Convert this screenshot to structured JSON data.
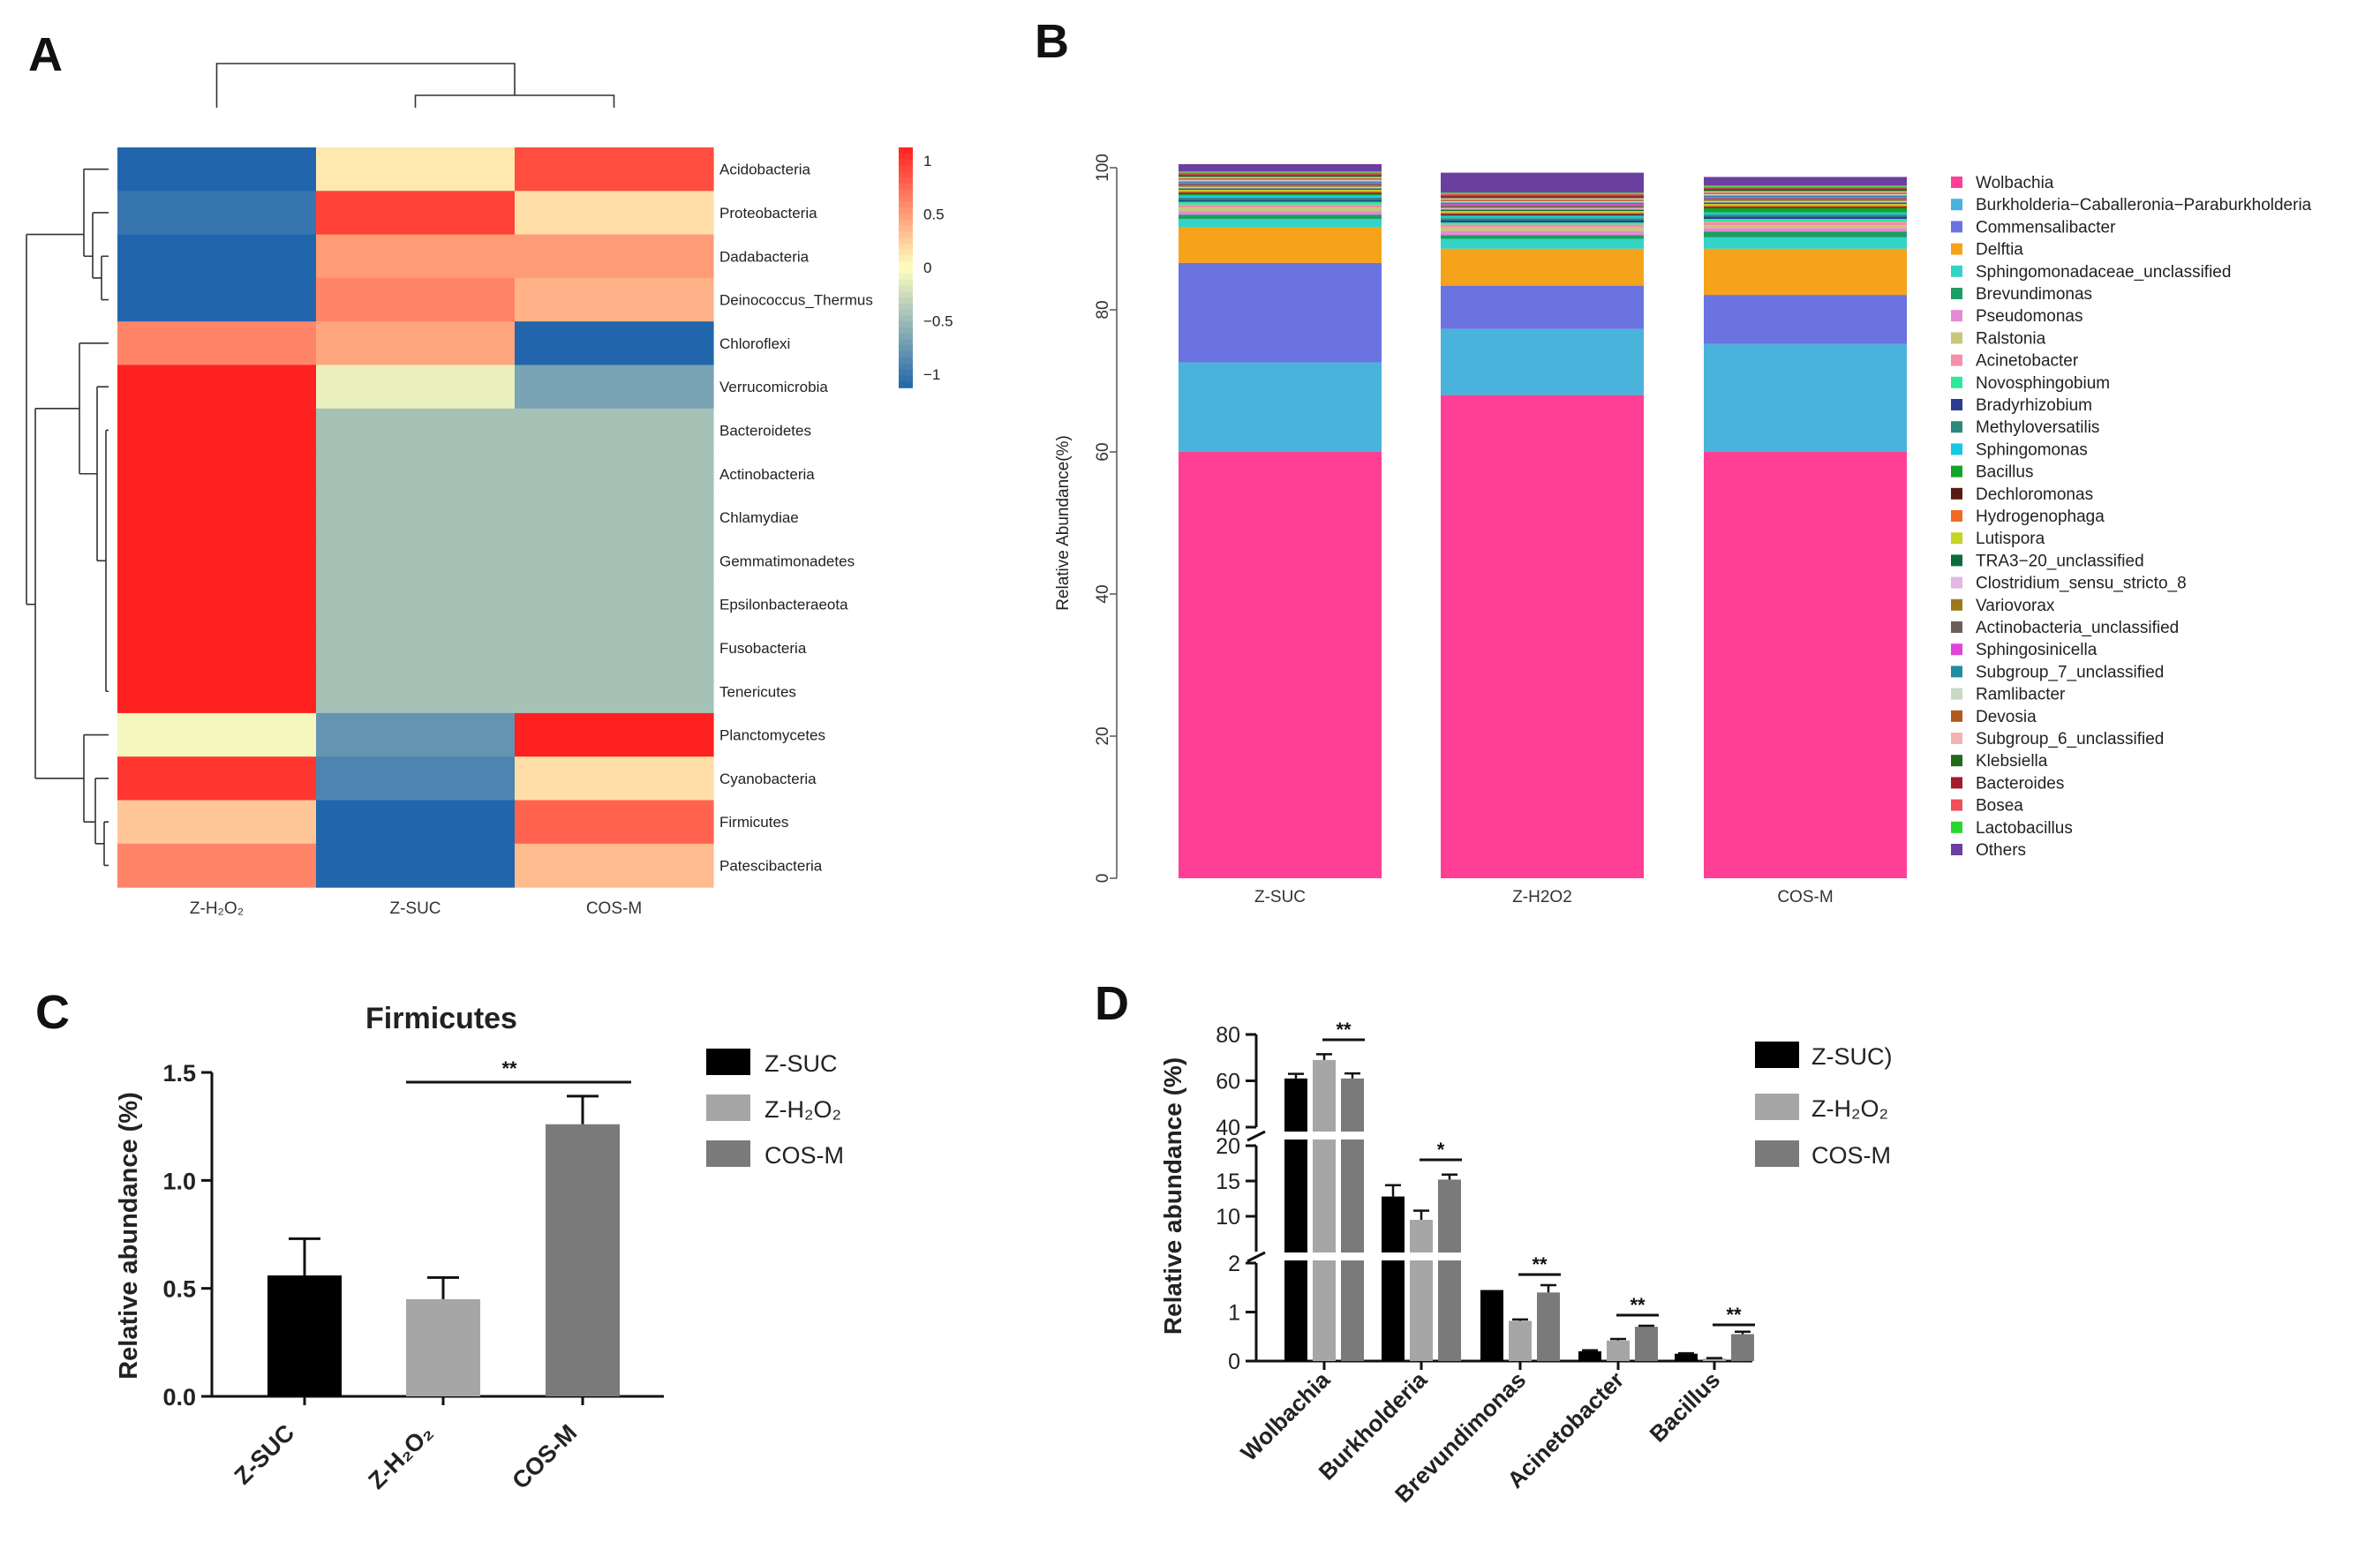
{
  "chart_data": [
    {
      "panel": "A",
      "type": "heatmap",
      "columns": [
        "Z-H₂O₂",
        "Z-SUC",
        "COS-M"
      ],
      "rows": [
        "Acidobacteria",
        "Proteobacteria",
        "Dadabacteria",
        "Deinococcus_Thermus",
        "Chloroflexi",
        "Verrucomicrobia",
        "Bacteroidetes",
        "Actinobacteria",
        "Chlamydiae",
        "Gemmatimonadetes",
        "Epsilonbacteraeota",
        "Fusobacteria",
        "Tenericutes",
        "Planctomycetes",
        "Cyanobacteria",
        "Firmicutes",
        "Patescibacteria"
      ],
      "values": [
        [
          -1.0,
          0.1,
          0.8
        ],
        [
          -0.9,
          0.85,
          0.15
        ],
        [
          -1.0,
          0.45,
          0.45
        ],
        [
          -1.0,
          0.55,
          0.35
        ],
        [
          0.55,
          0.4,
          -1.0
        ],
        [
          1.0,
          -0.1,
          -0.6
        ],
        [
          1.0,
          -0.4,
          -0.4
        ],
        [
          1.0,
          -0.4,
          -0.4
        ],
        [
          1.0,
          -0.4,
          -0.4
        ],
        [
          1.0,
          -0.4,
          -0.4
        ],
        [
          1.0,
          -0.4,
          -0.4
        ],
        [
          1.0,
          -0.4,
          -0.4
        ],
        [
          1.0,
          -0.4,
          -0.4
        ],
        [
          -0.05,
          -0.7,
          1.0
        ],
        [
          0.9,
          -0.8,
          0.15
        ],
        [
          0.25,
          -1.0,
          0.7
        ],
        [
          0.55,
          -1.0,
          0.3
        ]
      ],
      "colorbar": {
        "ticks": [
          "1",
          "0.5",
          "0",
          "−0.5",
          "−1"
        ],
        "range": [
          -1,
          1
        ],
        "colors": [
          "#2166ac",
          "#ffffbf",
          "#ff2020"
        ]
      }
    },
    {
      "panel": "B",
      "type": "bar",
      "stacked": true,
      "ylabel": "Relative Abundance(%)",
      "ylim": [
        0,
        100
      ],
      "yticks": [
        "0",
        "20",
        "40",
        "60",
        "80",
        "100"
      ],
      "categories": [
        "Z-SUC",
        "Z-H2O2",
        "COS-M"
      ],
      "series": [
        {
          "name": "Wolbachia",
          "color": "#ff3f96",
          "values": [
            60,
            68,
            60
          ]
        },
        {
          "name": "Burkholderia−Caballeronia−Paraburkholderia",
          "color": "#4ab3dc",
          "values": [
            12.6,
            9.3,
            15.2
          ]
        },
        {
          "name": "Commensalibacter",
          "color": "#6b73e0",
          "values": [
            14,
            6.1,
            6.9
          ]
        },
        {
          "name": "Delftia",
          "color": "#f5a31b",
          "values": [
            5,
            5.2,
            6.5
          ]
        },
        {
          "name": "Sphingomonadaceae_unclassified",
          "color": "#35d3c6",
          "values": [
            1.2,
            1.4,
            1.6
          ]
        },
        {
          "name": "Brevundimonas",
          "color": "#1b9e62",
          "values": [
            0.6,
            0.5,
            0.8
          ]
        },
        {
          "name": "Pseudomonas",
          "color": "#e58ad6",
          "values": [
            0.5,
            0.6,
            0.5
          ]
        },
        {
          "name": "Ralstonia",
          "color": "#c9c77a",
          "values": [
            0.5,
            0.5,
            0.4
          ]
        },
        {
          "name": "Acinetobacter",
          "color": "#f48fa8",
          "values": [
            0.4,
            0.4,
            0.5
          ]
        },
        {
          "name": "Novosphingobium",
          "color": "#2ee89a",
          "values": [
            0.4,
            0.3,
            0.4
          ]
        },
        {
          "name": "Bradyrhizobium",
          "color": "#2b3d8f",
          "values": [
            0.3,
            0.3,
            0.3
          ]
        },
        {
          "name": "Methyloversatilis",
          "color": "#2a8a7e",
          "values": [
            0.3,
            0.3,
            0.3
          ]
        },
        {
          "name": "Sphingomonas",
          "color": "#17c6e6",
          "values": [
            0.3,
            0.3,
            0.3
          ]
        },
        {
          "name": "Bacillus",
          "color": "#11a52a",
          "values": [
            0.2,
            0.1,
            0.6
          ]
        },
        {
          "name": "Dechloromonas",
          "color": "#5a1a12",
          "values": [
            0.2,
            0.2,
            0.2
          ]
        },
        {
          "name": "Hydrogenophaga",
          "color": "#ef6a22",
          "values": [
            0.2,
            0.2,
            0.2
          ]
        },
        {
          "name": "Lutispora",
          "color": "#c6d327",
          "values": [
            0.2,
            0.2,
            0.2
          ]
        },
        {
          "name": "TRA3−20_unclassified",
          "color": "#0d6b3a",
          "values": [
            0.2,
            0.2,
            0.2
          ]
        },
        {
          "name": "Clostridium_sensu_stricto_8",
          "color": "#e2b8e6",
          "values": [
            0.2,
            0.2,
            0.2
          ]
        },
        {
          "name": "Variovorax",
          "color": "#9c7a1c",
          "values": [
            0.2,
            0.2,
            0.2
          ]
        },
        {
          "name": "Actinobacteria_unclassified",
          "color": "#6c5f5a",
          "values": [
            0.2,
            0.2,
            0.2
          ]
        },
        {
          "name": "Sphingosinicella",
          "color": "#e145d8",
          "values": [
            0.2,
            0.2,
            0.2
          ]
        },
        {
          "name": "Subgroup_7_unclassified",
          "color": "#238ea0",
          "values": [
            0.2,
            0.2,
            0.2
          ]
        },
        {
          "name": "Ramlibacter",
          "color": "#c8d8c4",
          "values": [
            0.2,
            0.2,
            0.2
          ]
        },
        {
          "name": "Devosia",
          "color": "#b05a1e",
          "values": [
            0.2,
            0.2,
            0.2
          ]
        },
        {
          "name": "Subgroup_6_unclassified",
          "color": "#f4b3b3",
          "values": [
            0.2,
            0.2,
            0.2
          ]
        },
        {
          "name": "Klebsiella",
          "color": "#1f6b1a",
          "values": [
            0.2,
            0.2,
            0.2
          ]
        },
        {
          "name": "Bacteroides",
          "color": "#a11d2a",
          "values": [
            0.2,
            0.2,
            0.2
          ]
        },
        {
          "name": "Bosea",
          "color": "#f04e5a",
          "values": [
            0.2,
            0.2,
            0.2
          ]
        },
        {
          "name": "Lactobacillus",
          "color": "#29d62f",
          "values": [
            0.2,
            0.2,
            0.2
          ]
        },
        {
          "name": "Others",
          "color": "#6b3fa0",
          "values": [
            1,
            2.8,
            1.2
          ]
        }
      ]
    },
    {
      "panel": "C",
      "type": "bar",
      "title": "Firmicutes",
      "ylabel": "Relative abundance (%)",
      "ylim": [
        0,
        1.5
      ],
      "yticks": [
        "0.0",
        "0.5",
        "1.0",
        "1.5"
      ],
      "categories": [
        "Z-SUC",
        "Z-H₂O₂",
        "COS-M"
      ],
      "values": [
        0.56,
        0.45,
        1.26
      ],
      "errors": [
        0.17,
        0.1,
        0.13
      ],
      "colors": [
        "#000000",
        "#a6a6a6",
        "#7a7a7a"
      ],
      "legend": [
        "Z-SUC",
        "Z-H₂O₂",
        "COS-M"
      ],
      "annotation": "**"
    },
    {
      "panel": "D",
      "type": "bar",
      "ylabel": "Relative abundance (%)",
      "ylim": [
        0,
        80
      ],
      "yticks": [
        "0",
        "1",
        "2",
        "10",
        "15",
        "20",
        "40",
        "60",
        "80"
      ],
      "categories": [
        "Wolbachia",
        "Burkholderia",
        "Brevundimonas",
        "Acinetobacter",
        "Bacillus"
      ],
      "series": [
        {
          "name": "Z-SUC)",
          "color": "#000000",
          "values": [
            61,
            12.8,
            1.45,
            0.2,
            0.15
          ],
          "errors": [
            2,
            1.6,
            0,
            0.02,
            0.01
          ]
        },
        {
          "name": "Z-H₂O₂",
          "color": "#a6a6a6",
          "values": [
            69,
            9.5,
            0.82,
            0.42,
            0.05
          ],
          "errors": [
            2.5,
            1.3,
            0.03,
            0.03,
            0.01
          ]
        },
        {
          "name": "COS-M",
          "color": "#7a7a7a",
          "values": [
            61,
            15.2,
            1.4,
            0.7,
            0.55
          ],
          "errors": [
            2.2,
            0.7,
            0.15,
            0.02,
            0.05
          ]
        }
      ],
      "annotations": [
        "**",
        "*",
        "**",
        "**",
        "**"
      ]
    }
  ],
  "panels": {
    "a": "A",
    "b": "B",
    "c": "C",
    "d": "D"
  }
}
